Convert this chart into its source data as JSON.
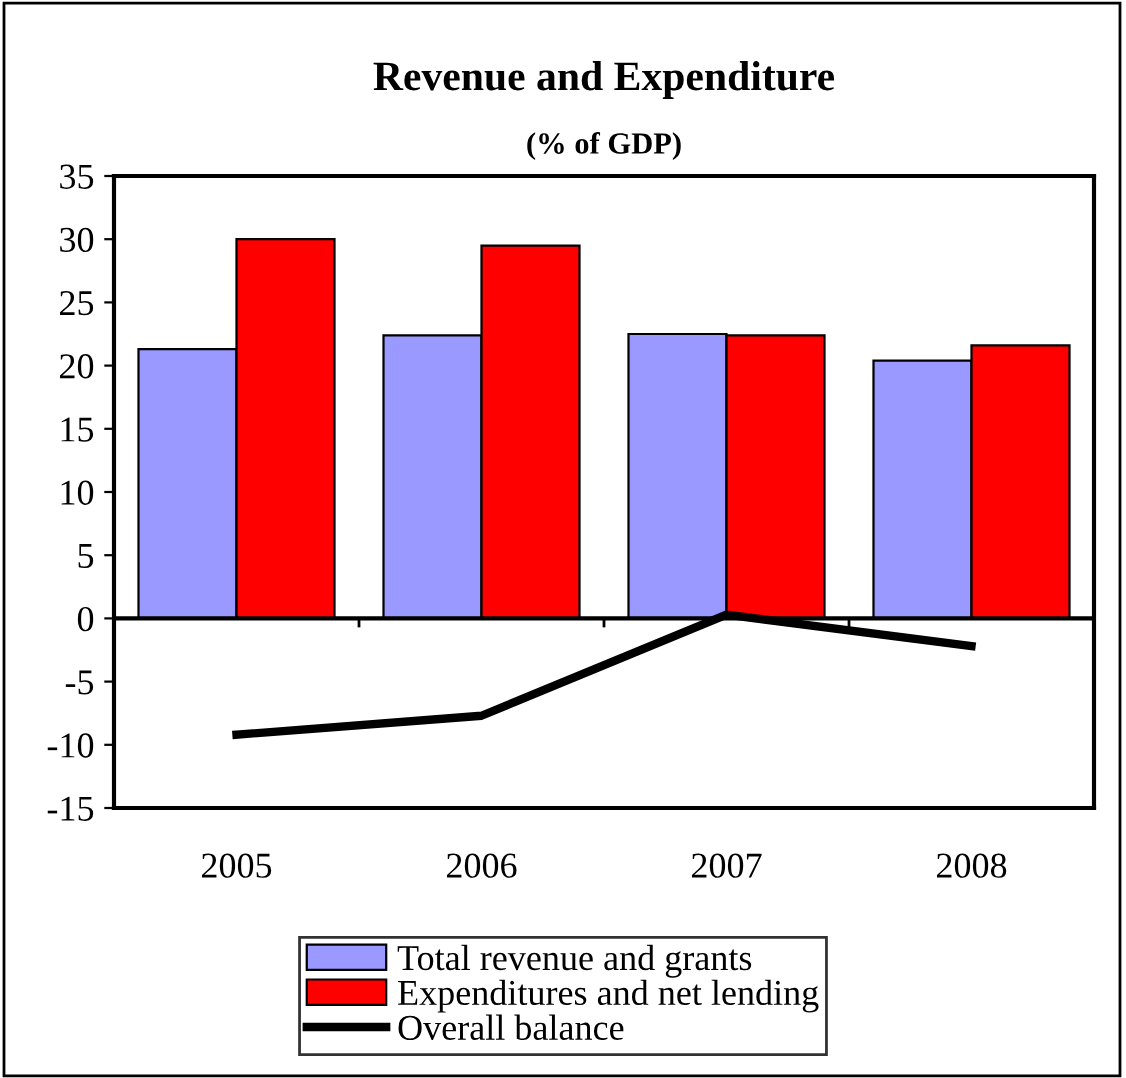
{
  "chart_data": {
    "type": "bar",
    "title": "Revenue and Expenditure",
    "subtitle": "(% of GDP)",
    "categories": [
      "2005",
      "2006",
      "2007",
      "2008"
    ],
    "series": [
      {
        "name": "Total revenue and grants",
        "color": "#9999ff",
        "values": [
          21.3,
          22.4,
          22.5,
          20.4
        ]
      },
      {
        "name": "Expenditures and net lending",
        "color": "#ff0000",
        "values": [
          30.0,
          29.5,
          22.4,
          21.6
        ]
      },
      {
        "name": "Overall balance",
        "type": "line",
        "color": "#000000",
        "values": [
          -9.2,
          -7.7,
          0.3,
          -2.2
        ]
      }
    ],
    "ylim": [
      -15,
      35
    ],
    "yticks": [
      -15,
      -10,
      -5,
      0,
      5,
      10,
      15,
      20,
      25,
      30,
      35
    ],
    "grid": false,
    "legend": "bottom",
    "ref_lines": [
      {
        "axis": "y",
        "value": 0,
        "color": "#000000"
      }
    ]
  }
}
